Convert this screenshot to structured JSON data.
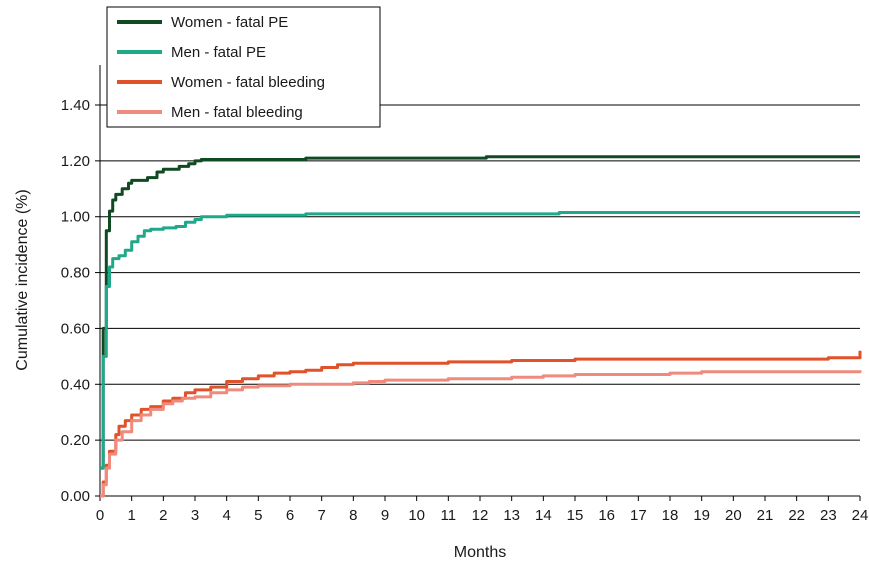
{
  "chart_data": {
    "type": "line",
    "title": "",
    "xlabel": "Months",
    "ylabel": "Cumulative incidence (%)",
    "xlim": [
      0,
      24
    ],
    "ylim": [
      0,
      1.4
    ],
    "x_ticks": [
      "0",
      "1",
      "2",
      "3",
      "4",
      "5",
      "6",
      "7",
      "8",
      "9",
      "10",
      "11",
      "12",
      "13",
      "14",
      "15",
      "16",
      "17",
      "18",
      "19",
      "20",
      "21",
      "22",
      "23",
      "24"
    ],
    "y_ticks": [
      "0.00",
      "0.20",
      "0.40",
      "0.60",
      "0.80",
      "1.00",
      "1.20",
      "1.40"
    ],
    "grid": "horizontal",
    "legend_position": "top-left",
    "series": [
      {
        "name": "Women - fatal PE",
        "color": "#0f4a22",
        "points": [
          [
            0,
            0.1
          ],
          [
            0.1,
            0.6
          ],
          [
            0.2,
            0.95
          ],
          [
            0.3,
            1.02
          ],
          [
            0.4,
            1.06
          ],
          [
            0.5,
            1.08
          ],
          [
            0.7,
            1.1
          ],
          [
            0.9,
            1.12
          ],
          [
            1.0,
            1.13
          ],
          [
            1.5,
            1.14
          ],
          [
            1.8,
            1.16
          ],
          [
            2.0,
            1.17
          ],
          [
            2.5,
            1.18
          ],
          [
            2.8,
            1.19
          ],
          [
            3.0,
            1.2
          ],
          [
            3.2,
            1.205
          ],
          [
            4,
            1.205
          ],
          [
            5,
            1.205
          ],
          [
            6,
            1.205
          ],
          [
            6.5,
            1.21
          ],
          [
            8,
            1.21
          ],
          [
            10,
            1.21
          ],
          [
            12.2,
            1.215
          ],
          [
            15,
            1.215
          ],
          [
            18,
            1.215
          ],
          [
            21,
            1.215
          ],
          [
            24,
            1.215
          ]
        ]
      },
      {
        "name": "Men - fatal PE",
        "color": "#1fa98a",
        "points": [
          [
            0,
            0.1
          ],
          [
            0.1,
            0.5
          ],
          [
            0.2,
            0.75
          ],
          [
            0.3,
            0.82
          ],
          [
            0.4,
            0.85
          ],
          [
            0.6,
            0.86
          ],
          [
            0.8,
            0.88
          ],
          [
            1.0,
            0.91
          ],
          [
            1.2,
            0.93
          ],
          [
            1.4,
            0.95
          ],
          [
            1.6,
            0.955
          ],
          [
            2.0,
            0.96
          ],
          [
            2.4,
            0.965
          ],
          [
            2.7,
            0.98
          ],
          [
            3.0,
            0.99
          ],
          [
            3.2,
            1.0
          ],
          [
            4,
            1.005
          ],
          [
            5,
            1.005
          ],
          [
            6,
            1.005
          ],
          [
            6.5,
            1.01
          ],
          [
            8,
            1.01
          ],
          [
            10,
            1.01
          ],
          [
            12,
            1.01
          ],
          [
            14.5,
            1.015
          ],
          [
            15,
            1.015
          ],
          [
            18,
            1.015
          ],
          [
            21,
            1.015
          ],
          [
            24,
            1.015
          ]
        ]
      },
      {
        "name": "Women - fatal bleeding",
        "color": "#e0532a",
        "points": [
          [
            0,
            0.0
          ],
          [
            0.1,
            0.05
          ],
          [
            0.2,
            0.11
          ],
          [
            0.3,
            0.16
          ],
          [
            0.5,
            0.22
          ],
          [
            0.6,
            0.25
          ],
          [
            0.8,
            0.27
          ],
          [
            1.0,
            0.29
          ],
          [
            1.3,
            0.31
          ],
          [
            1.6,
            0.32
          ],
          [
            2.0,
            0.34
          ],
          [
            2.3,
            0.35
          ],
          [
            2.7,
            0.37
          ],
          [
            3.0,
            0.38
          ],
          [
            3.5,
            0.39
          ],
          [
            4.0,
            0.41
          ],
          [
            4.5,
            0.42
          ],
          [
            5.0,
            0.43
          ],
          [
            5.5,
            0.44
          ],
          [
            6.0,
            0.445
          ],
          [
            6.5,
            0.45
          ],
          [
            7.0,
            0.46
          ],
          [
            7.5,
            0.47
          ],
          [
            8.0,
            0.475
          ],
          [
            9.0,
            0.475
          ],
          [
            10.0,
            0.475
          ],
          [
            11.0,
            0.48
          ],
          [
            12.0,
            0.48
          ],
          [
            13.0,
            0.485
          ],
          [
            14.0,
            0.485
          ],
          [
            15.0,
            0.49
          ],
          [
            18.0,
            0.49
          ],
          [
            20.0,
            0.49
          ],
          [
            22.0,
            0.49
          ],
          [
            23.0,
            0.495
          ],
          [
            23.9,
            0.495
          ],
          [
            24.0,
            0.52
          ]
        ]
      },
      {
        "name": "Men - fatal bleeding",
        "color": "#ef8a7d",
        "points": [
          [
            0,
            0.0
          ],
          [
            0.1,
            0.04
          ],
          [
            0.2,
            0.1
          ],
          [
            0.3,
            0.15
          ],
          [
            0.5,
            0.2
          ],
          [
            0.7,
            0.23
          ],
          [
            1.0,
            0.27
          ],
          [
            1.3,
            0.29
          ],
          [
            1.6,
            0.31
          ],
          [
            2.0,
            0.33
          ],
          [
            2.3,
            0.34
          ],
          [
            2.6,
            0.35
          ],
          [
            3.0,
            0.355
          ],
          [
            3.5,
            0.37
          ],
          [
            4.0,
            0.38
          ],
          [
            4.5,
            0.39
          ],
          [
            5.0,
            0.395
          ],
          [
            6.0,
            0.4
          ],
          [
            7.0,
            0.4
          ],
          [
            8.0,
            0.405
          ],
          [
            8.5,
            0.41
          ],
          [
            9.0,
            0.415
          ],
          [
            10.0,
            0.415
          ],
          [
            11.0,
            0.42
          ],
          [
            12.0,
            0.42
          ],
          [
            13.0,
            0.425
          ],
          [
            14.0,
            0.43
          ],
          [
            15.0,
            0.435
          ],
          [
            17.0,
            0.435
          ],
          [
            18.0,
            0.44
          ],
          [
            19.0,
            0.445
          ],
          [
            20.0,
            0.445
          ],
          [
            22.0,
            0.445
          ],
          [
            24.0,
            0.45
          ]
        ]
      }
    ]
  }
}
